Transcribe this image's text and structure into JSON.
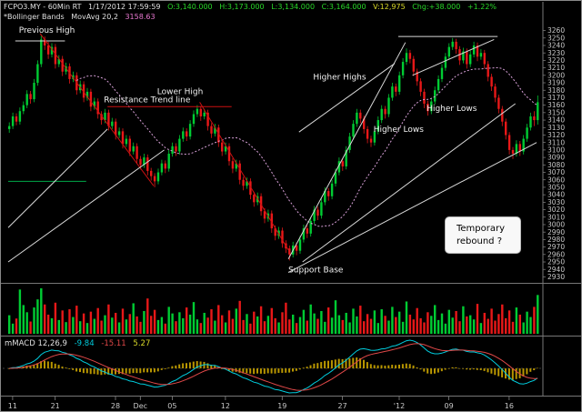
{
  "header": {
    "line1": {
      "symbol": "FCPO3.MY - 60Min RT",
      "datetime": "1/17/2012  17:59:59",
      "open": "O:3,140.000",
      "high": "H:3,173.000",
      "low": "L:3,134.000",
      "close": "C:3,164.000",
      "volume": "V:12,975",
      "change": "Chg:+38.000",
      "change_pct": "+1.22%"
    },
    "line2": {
      "indicator": "*Bollinger Bands",
      "movavg": "MovAvg 20,2",
      "value": "3158.63"
    }
  },
  "colors": {
    "up": "#00cc33",
    "down": "#e81818",
    "bollinger_mid": "#d8a0d8",
    "macd_line": "#00ccdd",
    "signal_line": "#e04848",
    "histogram": "#b89600",
    "annotation_white": "#d8d8d8",
    "annotation_red": "#cc1111",
    "annotation_green": "#00a84a"
  },
  "chart_data": {
    "type": "candlestick",
    "symbol": "FCPO3.MY",
    "timeframe": "60Min",
    "y_axis": {
      "min": 2930,
      "max": 3260,
      "step": 10
    },
    "x_labels": [
      {
        "t": "11",
        "i": 1
      },
      {
        "t": "21",
        "i": 13
      },
      {
        "t": "28",
        "i": 30
      },
      {
        "t": "Dec",
        "i": 37
      },
      {
        "t": "05",
        "i": 46
      },
      {
        "t": "12",
        "i": 61
      },
      {
        "t": "19",
        "i": 77
      },
      {
        "t": "27",
        "i": 94
      },
      {
        "t": "'12",
        "i": 110
      },
      {
        "t": "09",
        "i": 124
      },
      {
        "t": "16",
        "i": 141
      }
    ],
    "candles": [
      [
        3128,
        3137,
        3123,
        3132
      ],
      [
        3132,
        3150,
        3128,
        3145
      ],
      [
        3145,
        3149,
        3133,
        3138
      ],
      [
        3138,
        3157,
        3134,
        3152
      ],
      [
        3152,
        3165,
        3148,
        3160
      ],
      [
        3160,
        3180,
        3156,
        3175
      ],
      [
        3175,
        3179,
        3162,
        3168
      ],
      [
        3168,
        3195,
        3164,
        3190
      ],
      [
        3190,
        3220,
        3186,
        3215
      ],
      [
        3215,
        3253,
        3211,
        3248
      ],
      [
        3248,
        3252,
        3234,
        3240
      ],
      [
        3240,
        3245,
        3222,
        3228
      ],
      [
        3228,
        3243,
        3224,
        3238
      ],
      [
        3238,
        3242,
        3209,
        3215
      ],
      [
        3215,
        3227,
        3211,
        3222
      ],
      [
        3222,
        3226,
        3199,
        3205
      ],
      [
        3205,
        3217,
        3201,
        3212
      ],
      [
        3212,
        3216,
        3189,
        3195
      ],
      [
        3195,
        3205,
        3191,
        3200
      ],
      [
        3200,
        3204,
        3174,
        3180
      ],
      [
        3180,
        3193,
        3176,
        3188
      ],
      [
        3188,
        3192,
        3164,
        3170
      ],
      [
        3170,
        3183,
        3166,
        3178
      ],
      [
        3178,
        3182,
        3152,
        3158
      ],
      [
        3158,
        3170,
        3154,
        3165
      ],
      [
        3165,
        3169,
        3142,
        3148
      ],
      [
        3148,
        3152,
        3134,
        3140
      ],
      [
        3140,
        3155,
        3136,
        3150
      ],
      [
        3150,
        3154,
        3126,
        3132
      ],
      [
        3132,
        3143,
        3128,
        3138
      ],
      [
        3138,
        3142,
        3114,
        3120
      ],
      [
        3120,
        3130,
        3116,
        3125
      ],
      [
        3125,
        3129,
        3102,
        3108
      ],
      [
        3108,
        3120,
        3104,
        3115
      ],
      [
        3115,
        3119,
        3092,
        3098
      ],
      [
        3098,
        3110,
        3094,
        3105
      ],
      [
        3105,
        3109,
        3082,
        3088
      ],
      [
        3088,
        3092,
        3074,
        3080
      ],
      [
        3080,
        3095,
        3076,
        3090
      ],
      [
        3090,
        3094,
        3066,
        3072
      ],
      [
        3072,
        3076,
        3059,
        3065
      ],
      [
        3065,
        3069,
        3050,
        3058
      ],
      [
        3058,
        3075,
        3054,
        3070
      ],
      [
        3070,
        3087,
        3066,
        3082
      ],
      [
        3082,
        3086,
        3069,
        3075
      ],
      [
        3075,
        3100,
        3071,
        3095
      ],
      [
        3095,
        3110,
        3091,
        3105
      ],
      [
        3105,
        3109,
        3092,
        3098
      ],
      [
        3098,
        3120,
        3094,
        3115
      ],
      [
        3115,
        3130,
        3111,
        3125
      ],
      [
        3125,
        3129,
        3112,
        3118
      ],
      [
        3118,
        3140,
        3114,
        3135
      ],
      [
        3135,
        3153,
        3131,
        3148
      ],
      [
        3148,
        3160,
        3144,
        3155
      ],
      [
        3155,
        3159,
        3139,
        3145
      ],
      [
        3145,
        3155,
        3141,
        3150
      ],
      [
        3150,
        3154,
        3126,
        3132
      ],
      [
        3132,
        3136,
        3116,
        3122
      ],
      [
        3122,
        3135,
        3118,
        3130
      ],
      [
        3130,
        3134,
        3104,
        3110
      ],
      [
        3110,
        3114,
        3092,
        3098
      ],
      [
        3098,
        3110,
        3094,
        3105
      ],
      [
        3105,
        3109,
        3079,
        3085
      ],
      [
        3085,
        3089,
        3069,
        3075
      ],
      [
        3075,
        3087,
        3071,
        3082
      ],
      [
        3082,
        3086,
        3054,
        3060
      ],
      [
        3060,
        3064,
        3046,
        3052
      ],
      [
        3052,
        3063,
        3048,
        3058
      ],
      [
        3058,
        3062,
        3034,
        3040
      ],
      [
        3040,
        3044,
        3024,
        3030
      ],
      [
        3030,
        3043,
        3026,
        3038
      ],
      [
        3038,
        3042,
        3012,
        3018
      ],
      [
        3018,
        3022,
        3002,
        3008
      ],
      [
        3008,
        3020,
        3004,
        3015
      ],
      [
        3015,
        3019,
        2989,
        2995
      ],
      [
        2995,
        2999,
        2979,
        2985
      ],
      [
        2985,
        2997,
        2981,
        2992
      ],
      [
        2992,
        2996,
        2969,
        2975
      ],
      [
        2975,
        2979,
        2962,
        2968
      ],
      [
        2968,
        2972,
        2952,
        2960
      ],
      [
        2960,
        2977,
        2956,
        2972
      ],
      [
        2972,
        2976,
        2959,
        2965
      ],
      [
        2965,
        2985,
        2961,
        2980
      ],
      [
        2980,
        3000,
        2976,
        2995
      ],
      [
        2995,
        2999,
        2982,
        2988
      ],
      [
        2988,
        3010,
        2984,
        3005
      ],
      [
        3005,
        3025,
        3001,
        3020
      ],
      [
        3020,
        3024,
        3006,
        3012
      ],
      [
        3012,
        3035,
        3008,
        3030
      ],
      [
        3030,
        3050,
        3026,
        3045
      ],
      [
        3045,
        3049,
        3032,
        3038
      ],
      [
        3038,
        3060,
        3034,
        3055
      ],
      [
        3055,
        3075,
        3051,
        3070
      ],
      [
        3070,
        3090,
        3066,
        3085
      ],
      [
        3085,
        3089,
        3072,
        3078
      ],
      [
        3078,
        3105,
        3074,
        3100
      ],
      [
        3100,
        3123,
        3096,
        3118
      ],
      [
        3118,
        3140,
        3114,
        3135
      ],
      [
        3135,
        3155,
        3131,
        3150
      ],
      [
        3150,
        3154,
        3136,
        3142
      ],
      [
        3142,
        3146,
        3122,
        3128
      ],
      [
        3128,
        3132,
        3109,
        3115
      ],
      [
        3115,
        3119,
        3104,
        3110
      ],
      [
        3110,
        3130,
        3106,
        3125
      ],
      [
        3125,
        3145,
        3121,
        3140
      ],
      [
        3140,
        3160,
        3136,
        3155
      ],
      [
        3155,
        3159,
        3142,
        3148
      ],
      [
        3148,
        3175,
        3144,
        3170
      ],
      [
        3170,
        3190,
        3166,
        3185
      ],
      [
        3185,
        3189,
        3172,
        3178
      ],
      [
        3178,
        3205,
        3174,
        3200
      ],
      [
        3200,
        3223,
        3196,
        3218
      ],
      [
        3218,
        3236,
        3214,
        3230
      ],
      [
        3230,
        3234,
        3216,
        3222
      ],
      [
        3222,
        3226,
        3199,
        3205
      ],
      [
        3205,
        3209,
        3186,
        3192
      ],
      [
        3192,
        3196,
        3172,
        3178
      ],
      [
        3178,
        3182,
        3156,
        3162
      ],
      [
        3162,
        3166,
        3146,
        3152
      ],
      [
        3152,
        3170,
        3148,
        3165
      ],
      [
        3165,
        3185,
        3161,
        3180
      ],
      [
        3180,
        3200,
        3176,
        3195
      ],
      [
        3195,
        3215,
        3191,
        3210
      ],
      [
        3210,
        3230,
        3206,
        3225
      ],
      [
        3225,
        3243,
        3221,
        3238
      ],
      [
        3238,
        3250,
        3234,
        3245
      ],
      [
        3245,
        3249,
        3229,
        3235
      ],
      [
        3235,
        3239,
        3214,
        3220
      ],
      [
        3220,
        3237,
        3216,
        3232
      ],
      [
        3232,
        3236,
        3209,
        3215
      ],
      [
        3215,
        3233,
        3211,
        3228
      ],
      [
        3228,
        3245,
        3224,
        3240
      ],
      [
        3240,
        3244,
        3219,
        3225
      ],
      [
        3225,
        3235,
        3221,
        3230
      ],
      [
        3230,
        3234,
        3209,
        3215
      ],
      [
        3215,
        3219,
        3192,
        3198
      ],
      [
        3198,
        3202,
        3179,
        3185
      ],
      [
        3185,
        3189,
        3164,
        3170
      ],
      [
        3170,
        3174,
        3149,
        3155
      ],
      [
        3155,
        3159,
        3132,
        3138
      ],
      [
        3138,
        3142,
        3114,
        3120
      ],
      [
        3120,
        3124,
        3094,
        3100
      ],
      [
        3100,
        3104,
        3088,
        3095
      ],
      [
        3095,
        3113,
        3091,
        3108
      ],
      [
        3108,
        3112,
        3092,
        3098
      ],
      [
        3098,
        3120,
        3094,
        3115
      ],
      [
        3115,
        3135,
        3111,
        3130
      ],
      [
        3130,
        3150,
        3126,
        3145
      ],
      [
        3145,
        3152,
        3132,
        3140
      ],
      [
        3140,
        3173,
        3134,
        3164
      ]
    ],
    "volumes": [
      6200,
      3400,
      5100,
      14800,
      9600,
      7200,
      4100,
      8800,
      11500,
      15200,
      9800,
      6400,
      5200,
      10400,
      4600,
      7800,
      3900,
      8200,
      5600,
      9400,
      4200,
      6800,
      3600,
      7400,
      5000,
      8600,
      4400,
      6200,
      9800,
      5400,
      7000,
      3800,
      8400,
      4800,
      6600,
      10200,
      5800,
      4000,
      7600,
      11800,
      6000,
      8000,
      4600,
      5600,
      3400,
      9000,
      6800,
      4200,
      7200,
      5200,
      8800,
      6400,
      10600,
      4800,
      3600,
      7000,
      5400,
      8200,
      4400,
      9600,
      6200,
      3800,
      7800,
      5000,
      8400,
      11000,
      4600,
      6600,
      3400,
      7400,
      5800,
      9200,
      4200,
      6000,
      8600,
      5200,
      3800,
      7200,
      10400,
      4800,
      6400,
      3600,
      5600,
      8000,
      4400,
      9800,
      6800,
      5000,
      7600,
      4000,
      8800,
      5400,
      11200,
      6200,
      4600,
      7000,
      3800,
      8400,
      5800,
      9400,
      4200,
      6600,
      5000,
      7800,
      3600,
      8200,
      6000,
      4400,
      9000,
      5600,
      7400,
      4000,
      10800,
      6400,
      4800,
      8600,
      5200,
      3800,
      7200,
      6000,
      9600,
      4600,
      6800,
      3400,
      8000,
      5400,
      7600,
      4200,
      9200,
      5800,
      6200,
      4800,
      10000,
      3600,
      7000,
      5000,
      8400,
      4400,
      6600,
      9800,
      5200,
      7800,
      4000,
      8800,
      6400,
      3800,
      7400,
      5600,
      9000,
      12975
    ],
    "bollinger": {
      "period": 20,
      "deviation": 2
    },
    "macd": {
      "label": "mMACD 12,26,9",
      "fast": 12,
      "slow": 26,
      "signal_period": 9,
      "macd_value": "-9.84",
      "signal_value": "-15.11",
      "hist_value": "5.27"
    },
    "annotations": {
      "lines": [
        {
          "name": "previous-high-line",
          "i1": 2,
          "p1": 3246,
          "i2": 16,
          "p2": 3246,
          "color": "#d8d8d8"
        },
        {
          "name": "downtrend-line-1",
          "i1": 9,
          "p1": 3256,
          "i2": 41,
          "p2": 3052,
          "color": "#cc1111"
        },
        {
          "name": "resistance-trend-line",
          "i1": 28,
          "p1": 3158,
          "i2": 63,
          "p2": 3158,
          "color": "#cc1111"
        },
        {
          "name": "downtrend-line-2",
          "i1": 54,
          "p1": 3164,
          "i2": 79,
          "p2": 2966,
          "color": "#cc1111"
        },
        {
          "name": "support-level-line",
          "i1": 0,
          "p1": 3058,
          "i2": 22,
          "p2": 3058,
          "color": "#00a84a"
        },
        {
          "name": "uptrend-line-left-1",
          "i1": 0,
          "p1": 2950,
          "i2": 44,
          "p2": 3100,
          "color": "#d8d8d8"
        },
        {
          "name": "uptrend-line-left-2",
          "i1": 0,
          "p1": 2996,
          "i2": 28,
          "p2": 3128,
          "color": "#d8d8d8"
        },
        {
          "name": "uptrend-line-right-1",
          "i1": 79,
          "p1": 2954,
          "i2": 112,
          "p2": 3244,
          "color": "#d8d8d8"
        },
        {
          "name": "uptrend-line-right-2",
          "i1": 83,
          "p1": 2950,
          "i2": 143,
          "p2": 3162,
          "color": "#d8d8d8"
        },
        {
          "name": "uptrend-line-right-3",
          "i1": 79,
          "p1": 2936,
          "i2": 149,
          "p2": 3110,
          "color": "#d8d8d8"
        },
        {
          "name": "higher-highs-line",
          "i1": 82,
          "p1": 3124,
          "i2": 109,
          "p2": 3216,
          "color": "#d8d8d8"
        },
        {
          "name": "wedge-top-line",
          "i1": 110,
          "p1": 3252,
          "i2": 138,
          "p2": 3252,
          "color": "#d8d8d8"
        },
        {
          "name": "wedge-rising-line",
          "i1": 114,
          "p1": 3200,
          "i2": 137,
          "p2": 3248,
          "color": "#d8d8d8"
        }
      ],
      "labels": [
        {
          "name": "previous-high-label",
          "text": "Previous High",
          "i": 3,
          "p": 3257
        },
        {
          "name": "lower-high-label",
          "text": "Lower High",
          "i": 42,
          "p": 3175
        },
        {
          "name": "resistance-label",
          "text": "Resistance Trend line",
          "i": 27,
          "p": 3164
        },
        {
          "name": "higher-highs-label",
          "text": "Higher Highs",
          "i": 86,
          "p": 3194
        },
        {
          "name": "higher-lows-label-1",
          "text": "Higher Lows",
          "i": 103,
          "p": 3124
        },
        {
          "name": "higher-lows-label-2",
          "text": "Higher Lows",
          "i": 118,
          "p": 3152
        },
        {
          "name": "support-base-label",
          "text": "Support Base",
          "i": 79,
          "p": 2936
        }
      ],
      "note": {
        "text": "Temporary rebound ?"
      }
    }
  }
}
